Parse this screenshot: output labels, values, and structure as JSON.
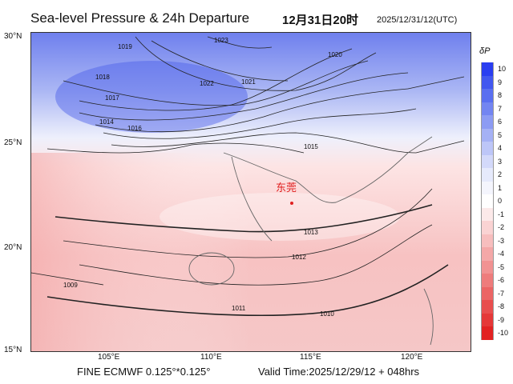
{
  "header": {
    "title": "Sea-level Pressure & 24h Departure",
    "beijing_time": "12月31日20时",
    "utc_time": "2025/12/31/12(UTC)"
  },
  "footer": {
    "model": "FINE ECMWF 0.125°*0.125°",
    "valid_time": "Valid Time:2025/12/29/12 + 048hrs"
  },
  "axes": {
    "lat_labels": [
      "30°N",
      "25°N",
      "20°N",
      "15°N"
    ],
    "lon_labels": [
      "105°E",
      "110°E",
      "115°E",
      "120°E"
    ]
  },
  "city_label": "东莞",
  "colorbar": {
    "title": "δP",
    "ticks": [
      "10",
      "9",
      "8",
      "7",
      "6",
      "5",
      "4",
      "3",
      "2",
      "1",
      "0",
      "-1",
      "-2",
      "-3",
      "-4",
      "-5",
      "-6",
      "-7",
      "-8",
      "-9",
      "-10"
    ],
    "colors": [
      "#2a3ef0",
      "#4257ef",
      "#5a6ff0",
      "#7385f1",
      "#8c9bf3",
      "#a5b1f5",
      "#bdc6f8",
      "#d3d9fa",
      "#e6eafc",
      "#f4f5fd",
      "#ffffff",
      "#fce9e9",
      "#fad3d3",
      "#f7bebe",
      "#f4a8a8",
      "#f19292",
      "#ee7c7c",
      "#eb6565",
      "#e84e4e",
      "#e53838",
      "#e22222"
    ]
  },
  "isobars": [
    {
      "label": "1023"
    },
    {
      "label": "1022"
    },
    {
      "label": "1021"
    },
    {
      "label": "1020"
    },
    {
      "label": "1019"
    },
    {
      "label": "1018"
    },
    {
      "label": "1017"
    },
    {
      "label": "1016"
    },
    {
      "label": "1015"
    },
    {
      "label": "1014"
    },
    {
      "label": "1013"
    },
    {
      "label": "1012"
    },
    {
      "label": "1011"
    },
    {
      "label": "1010"
    },
    {
      "label": "1009"
    }
  ]
}
